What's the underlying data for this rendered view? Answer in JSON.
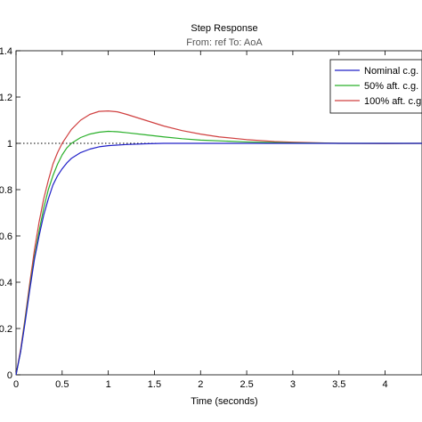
{
  "chart_data": {
    "type": "line",
    "title": "Step Response",
    "subtitle": "From: ref  To: AoA",
    "xlabel": "Time (seconds)",
    "ylabel": "",
    "xlim": [
      0,
      4.4
    ],
    "ylim": [
      0,
      1.4
    ],
    "xticks": [
      0,
      0.5,
      1,
      1.5,
      2,
      2.5,
      3,
      3.5,
      4
    ],
    "xtick_labels": [
      "0",
      "0.5",
      "1",
      "1.5",
      "2",
      "2.5",
      "3",
      "3.5",
      "4"
    ],
    "yticks": [
      0,
      0.2,
      0.4,
      0.6,
      0.8,
      1,
      1.2,
      1.4
    ],
    "ytick_labels": [
      "0",
      "0.2",
      "0.4",
      "0.6",
      "0.8",
      "1",
      "1.2",
      "1.4"
    ],
    "reference_line": {
      "y": 1,
      "style": "dotted",
      "color": "#000000"
    },
    "grid": false,
    "legend_position": "top-right",
    "series": [
      {
        "name": "Nominal c.g.",
        "color": "#2020c8",
        "x": [
          0,
          0.05,
          0.1,
          0.15,
          0.2,
          0.25,
          0.3,
          0.35,
          0.4,
          0.45,
          0.5,
          0.55,
          0.6,
          0.7,
          0.8,
          0.9,
          1.0,
          1.2,
          1.4,
          1.6,
          2.0,
          2.5,
          3.0,
          3.5,
          4.0,
          4.4
        ],
        "y": [
          0,
          0.1,
          0.23,
          0.37,
          0.5,
          0.6,
          0.69,
          0.76,
          0.82,
          0.86,
          0.89,
          0.915,
          0.935,
          0.96,
          0.975,
          0.985,
          0.99,
          0.995,
          0.998,
          1.0,
          1.0,
          1.0,
          1.0,
          1.0,
          1.0,
          1.0
        ]
      },
      {
        "name": "50% aft. c.g.",
        "color": "#2ab02a",
        "x": [
          0,
          0.05,
          0.1,
          0.15,
          0.2,
          0.25,
          0.3,
          0.35,
          0.4,
          0.45,
          0.5,
          0.55,
          0.6,
          0.7,
          0.8,
          0.9,
          1.0,
          1.1,
          1.2,
          1.4,
          1.6,
          1.8,
          2.0,
          2.5,
          3.0,
          3.5,
          4.0,
          4.4
        ],
        "y": [
          0,
          0.1,
          0.24,
          0.38,
          0.51,
          0.62,
          0.72,
          0.8,
          0.86,
          0.91,
          0.95,
          0.98,
          1.0,
          1.025,
          1.04,
          1.048,
          1.052,
          1.05,
          1.046,
          1.037,
          1.028,
          1.02,
          1.014,
          1.006,
          1.002,
          1.0,
          1.0,
          1.0
        ]
      },
      {
        "name": "100% aft. c.g.",
        "color": "#d04040",
        "x": [
          0,
          0.05,
          0.1,
          0.15,
          0.2,
          0.25,
          0.3,
          0.35,
          0.4,
          0.45,
          0.5,
          0.55,
          0.6,
          0.7,
          0.8,
          0.9,
          1.0,
          1.1,
          1.2,
          1.4,
          1.6,
          1.8,
          2.0,
          2.2,
          2.5,
          2.8,
          3.0,
          3.5,
          4.0,
          4.4
        ],
        "y": [
          0,
          0.11,
          0.25,
          0.4,
          0.54,
          0.66,
          0.76,
          0.84,
          0.91,
          0.96,
          1.0,
          1.03,
          1.06,
          1.1,
          1.125,
          1.138,
          1.14,
          1.136,
          1.125,
          1.1,
          1.075,
          1.055,
          1.04,
          1.028,
          1.016,
          1.008,
          1.005,
          1.0,
          0.999,
          1.0
        ]
      }
    ]
  }
}
